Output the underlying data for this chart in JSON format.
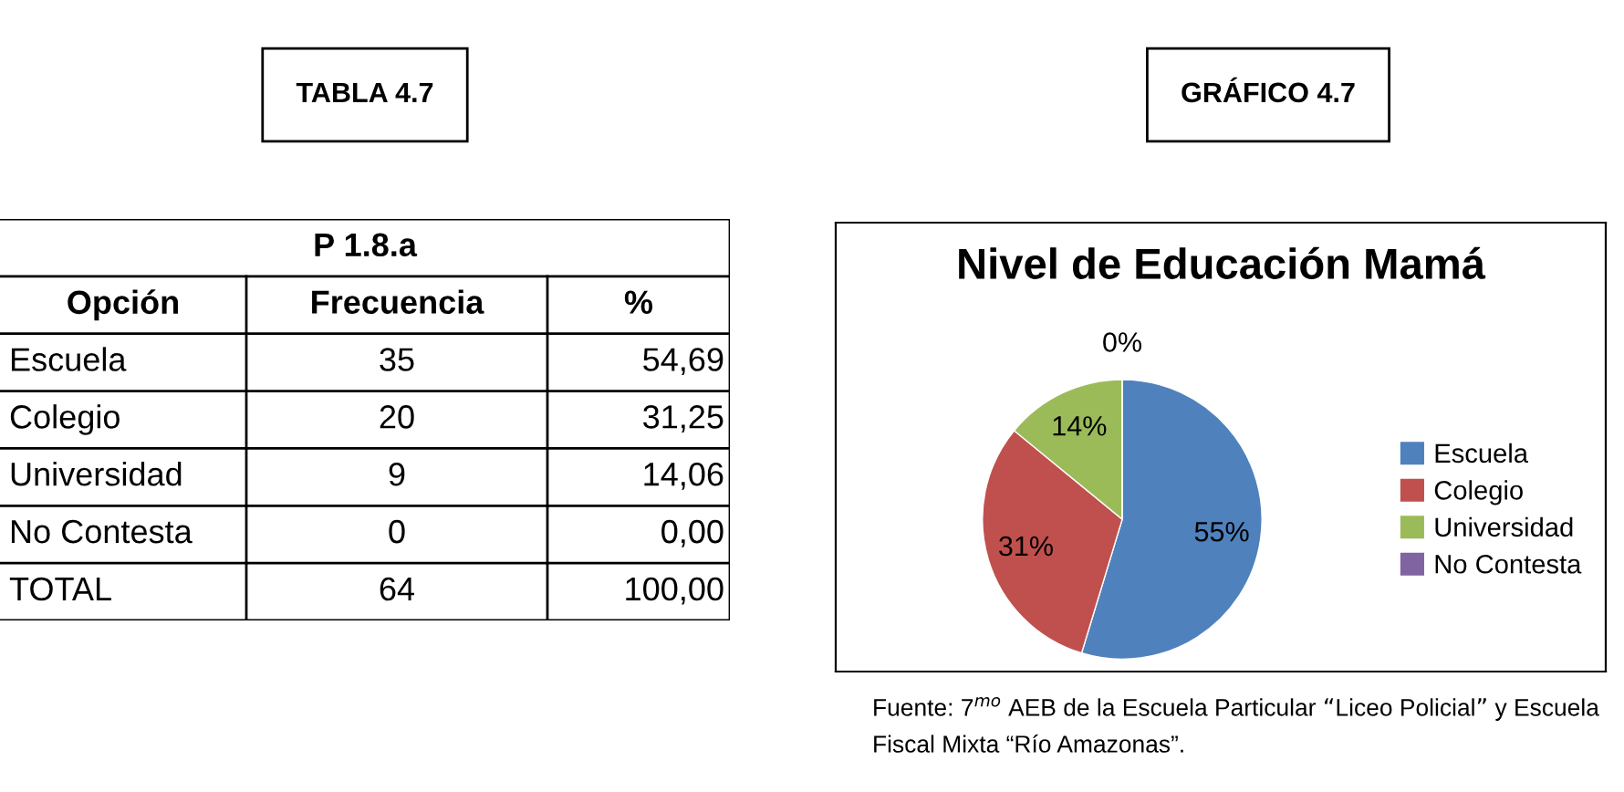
{
  "chart_data": [
    {
      "type": "other",
      "title": "TABLA 4.7",
      "annotations": [
        "P 1.8.a",
        "Opción",
        "Frecuencia",
        "%",
        "Escuela",
        "35",
        "54,69",
        "Colegio",
        "20",
        "31,25",
        "Universidad",
        "9",
        "14,06",
        "No Contesta",
        "0",
        "0,00",
        "TOTAL",
        "64",
        "100,00"
      ]
    },
    {
      "type": "pie",
      "title": "GRÁFICO 4.7",
      "subtitle": "Nivel de Educación Mamá",
      "categories": [
        "Escuela",
        "Colegio",
        "Universidad",
        "No Contesta"
      ],
      "values": [
        54.69,
        31.25,
        14.06,
        0
      ],
      "value_labels": [
        "55%",
        "31%",
        "14%",
        "0%"
      ],
      "colors": [
        "#4f81bd",
        "#c0504d",
        "#9bbb59",
        "#8064a2"
      ],
      "legend": "right",
      "annotations": [
        "Fuente: 7$^{mo}$ AEB de la Escuela Particular “Liceo Policial” y Escuela Fiscal Mixta “Río Amazonas”."
      ]
    }
  ]
}
